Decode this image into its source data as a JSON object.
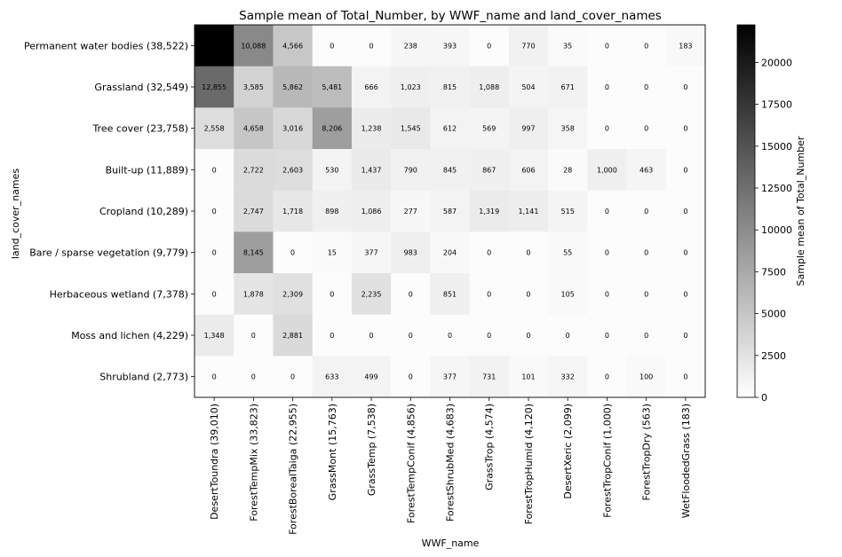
{
  "chart_data": {
    "type": "heatmap",
    "title": "Sample mean of Total_Number, by WWF_name and land_cover_names",
    "xlabel": "WWF_name",
    "ylabel": "land_cover_names",
    "colorbar_label": "Sample mean of Total_Number",
    "colormap": "white-to-black",
    "color_range": [
      0,
      22248
    ],
    "colorbar_ticks": [
      0,
      2500,
      5000,
      7500,
      10000,
      12500,
      15000,
      17500,
      20000
    ],
    "x_categories": [
      "DesertToundra (39,010)",
      "ForestTempMix (33,823)",
      "ForestBorealTaiga (22,955)",
      "GrassMont (15,763)",
      "GrassTemp (7,538)",
      "ForestTempConif (4,856)",
      "ForestShrubMed (4,683)",
      "GrassTrop (4,574)",
      "ForestTropHumid (4,120)",
      "DesertXeric (2,099)",
      "ForestTropConif (1,000)",
      "ForestTropDry (563)",
      "WetFloodedGrass (183)"
    ],
    "y_categories": [
      "Permanent water bodies (38,522)",
      "Grassland (32,549)",
      "Tree cover (23,758)",
      "Built-up (11,889)",
      "Cropland (10,289)",
      "Bare / sparse vegetation (9,779)",
      "Herbaceous wetland (7,378)",
      "Moss and lichen (4,229)",
      "Shrubland (2,773)"
    ],
    "values": [
      [
        22248,
        10088,
        4566,
        0,
        0,
        238,
        393,
        0,
        770,
        35,
        0,
        0,
        183
      ],
      [
        12855,
        3585,
        5862,
        5481,
        666,
        1023,
        815,
        1088,
        504,
        671,
        0,
        0,
        0
      ],
      [
        2558,
        4658,
        3016,
        8206,
        1238,
        1545,
        612,
        569,
        997,
        358,
        0,
        0,
        0
      ],
      [
        0,
        2722,
        2603,
        530,
        1437,
        790,
        845,
        867,
        606,
        28,
        1000,
        463,
        0
      ],
      [
        0,
        2747,
        1718,
        898,
        1086,
        277,
        587,
        1319,
        1141,
        515,
        0,
        0,
        0
      ],
      [
        0,
        8145,
        0,
        15,
        377,
        983,
        204,
        0,
        0,
        55,
        0,
        0,
        0
      ],
      [
        0,
        1878,
        2309,
        0,
        2235,
        0,
        851,
        0,
        0,
        105,
        0,
        0,
        0
      ],
      [
        1348,
        0,
        2881,
        0,
        0,
        0,
        0,
        0,
        0,
        0,
        0,
        0,
        0
      ],
      [
        0,
        0,
        0,
        633,
        499,
        0,
        377,
        731,
        101,
        332,
        0,
        100,
        0
      ]
    ],
    "value_labels": [
      [
        "22,248",
        "10,088",
        "4,566",
        "0",
        "0",
        "238",
        "393",
        "0",
        "770",
        "35",
        "0",
        "0",
        "183"
      ],
      [
        "12,855",
        "3,585",
        "5,862",
        "5,481",
        "666",
        "1,023",
        "815",
        "1,088",
        "504",
        "671",
        "0",
        "0",
        "0"
      ],
      [
        "2,558",
        "4,658",
        "3,016",
        "8,206",
        "1,238",
        "1,545",
        "612",
        "569",
        "997",
        "358",
        "0",
        "0",
        "0"
      ],
      [
        "0",
        "2,722",
        "2,603",
        "530",
        "1,437",
        "790",
        "845",
        "867",
        "606",
        "28",
        "1,000",
        "463",
        "0"
      ],
      [
        "0",
        "2,747",
        "1,718",
        "898",
        "1,086",
        "277",
        "587",
        "1,319",
        "1,141",
        "515",
        "0",
        "0",
        "0"
      ],
      [
        "0",
        "8,145",
        "0",
        "15",
        "377",
        "983",
        "204",
        "0",
        "0",
        "55",
        "0",
        "0",
        "0"
      ],
      [
        "0",
        "1,878",
        "2,309",
        "0",
        "2,235",
        "0",
        "851",
        "0",
        "0",
        "105",
        "0",
        "0",
        "0"
      ],
      [
        "1,348",
        "0",
        "2,881",
        "0",
        "0",
        "0",
        "0",
        "0",
        "0",
        "0",
        "0",
        "0",
        "0"
      ],
      [
        "0",
        "0",
        "0",
        "633",
        "499",
        "0",
        "377",
        "731",
        "101",
        "332",
        "0",
        "100",
        "0"
      ]
    ]
  }
}
